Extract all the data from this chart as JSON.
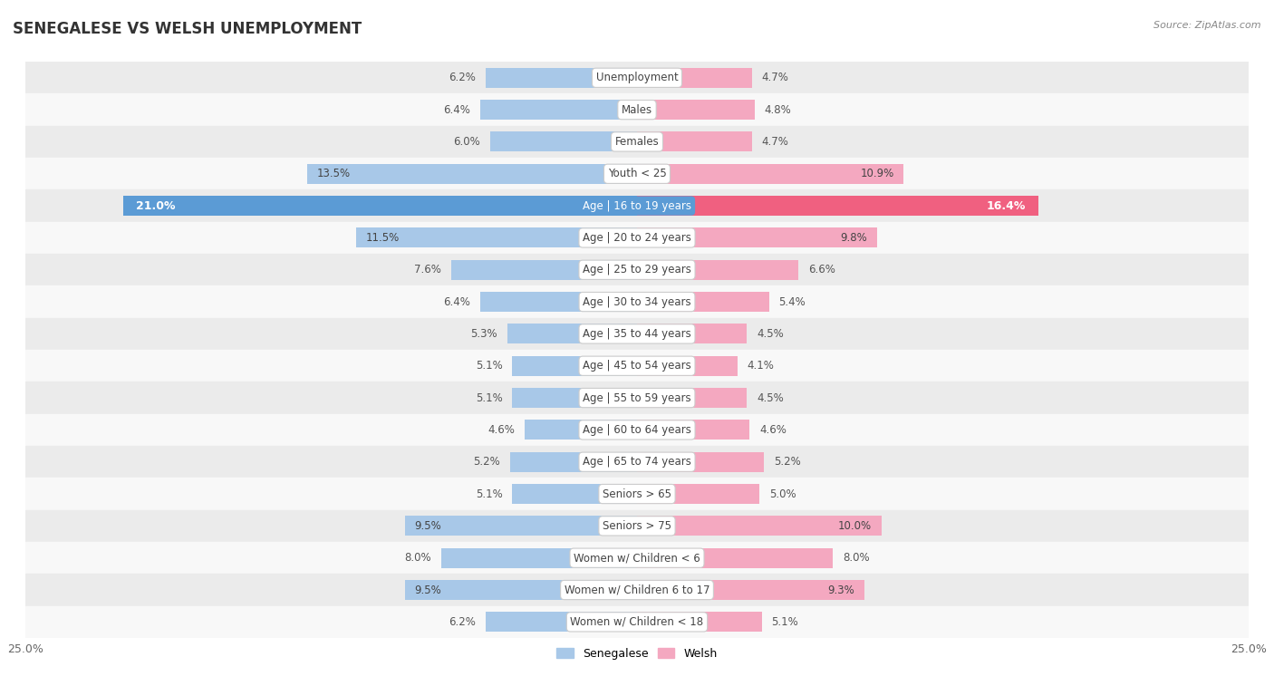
{
  "title": "SENEGALESE VS WELSH UNEMPLOYMENT",
  "source": "Source: ZipAtlas.com",
  "categories": [
    "Unemployment",
    "Males",
    "Females",
    "Youth < 25",
    "Age | 16 to 19 years",
    "Age | 20 to 24 years",
    "Age | 25 to 29 years",
    "Age | 30 to 34 years",
    "Age | 35 to 44 years",
    "Age | 45 to 54 years",
    "Age | 55 to 59 years",
    "Age | 60 to 64 years",
    "Age | 65 to 74 years",
    "Seniors > 65",
    "Seniors > 75",
    "Women w/ Children < 6",
    "Women w/ Children 6 to 17",
    "Women w/ Children < 18"
  ],
  "senegalese": [
    6.2,
    6.4,
    6.0,
    13.5,
    21.0,
    11.5,
    7.6,
    6.4,
    5.3,
    5.1,
    5.1,
    4.6,
    5.2,
    5.1,
    9.5,
    8.0,
    9.5,
    6.2
  ],
  "welsh": [
    4.7,
    4.8,
    4.7,
    10.9,
    16.4,
    9.8,
    6.6,
    5.4,
    4.5,
    4.1,
    4.5,
    4.6,
    5.2,
    5.0,
    10.0,
    8.0,
    9.3,
    5.1
  ],
  "senegalese_color": "#a8c8e8",
  "welsh_color": "#f4a8c0",
  "senegalese_highlight_color": "#5b9bd5",
  "welsh_highlight_color": "#f06080",
  "highlight_row": 4,
  "xlim": 25.0,
  "bar_height": 0.62,
  "bg_color_odd": "#ebebeb",
  "bg_color_even": "#f8f8f8",
  "label_color_dark": "#444444",
  "label_color_white": "#ffffff",
  "value_label_color": "#555555",
  "title_color": "#333333",
  "source_color": "#888888"
}
